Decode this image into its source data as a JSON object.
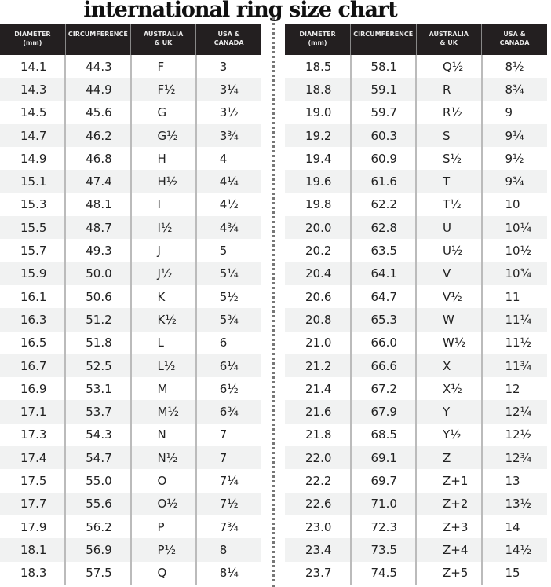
{
  "title": "international ring size chart",
  "columns": [
    "DIAMETER\n(mm)",
    "CIRCUMFERENCE",
    "AUSTRALIA\n& UK",
    "USA &\nCANADA"
  ],
  "left_rows": [
    [
      "14.1",
      "44.3",
      "F",
      "3"
    ],
    [
      "14.3",
      "44.9",
      "F½",
      "3¼"
    ],
    [
      "14.5",
      "45.6",
      "G",
      "3½"
    ],
    [
      "14.7",
      "46.2",
      "G½",
      "3¾"
    ],
    [
      "14.9",
      "46.8",
      "H",
      "4"
    ],
    [
      "15.1",
      "47.4",
      "H½",
      "4¼"
    ],
    [
      "15.3",
      "48.1",
      "I",
      "4½"
    ],
    [
      "15.5",
      "48.7",
      "I½",
      "4¾"
    ],
    [
      "15.7",
      "49.3",
      "J",
      "5"
    ],
    [
      "15.9",
      "50.0",
      "J½",
      "5¼"
    ],
    [
      "16.1",
      "50.6",
      "K",
      "5½"
    ],
    [
      "16.3",
      "51.2",
      "K½",
      "5¾"
    ],
    [
      "16.5",
      "51.8",
      "L",
      "6"
    ],
    [
      "16.7",
      "52.5",
      "L½",
      "6¼"
    ],
    [
      "16.9",
      "53.1",
      "M",
      "6½"
    ],
    [
      "17.1",
      "53.7",
      "M½",
      "6¾"
    ],
    [
      "17.3",
      "54.3",
      "N",
      "7"
    ],
    [
      "17.4",
      "54.7",
      "N½",
      "7"
    ],
    [
      "17.5",
      "55.0",
      "O",
      "7¼"
    ],
    [
      "17.7",
      "55.6",
      "O½",
      "7½"
    ],
    [
      "17.9",
      "56.2",
      "P",
      "7¾"
    ],
    [
      "18.1",
      "56.9",
      "P½",
      "8"
    ],
    [
      "18.3",
      "57.5",
      "Q",
      "8¼"
    ]
  ],
  "right_rows": [
    [
      "18.5",
      "58.1",
      "Q½",
      "8½"
    ],
    [
      "18.8",
      "59.1",
      "R",
      "8¾"
    ],
    [
      "19.0",
      "59.7",
      "R½",
      "9"
    ],
    [
      "19.2",
      "60.3",
      "S",
      "9¼"
    ],
    [
      "19.4",
      "60.9",
      "S½",
      "9½"
    ],
    [
      "19.6",
      "61.6",
      "T",
      "9¾"
    ],
    [
      "19.8",
      "62.2",
      "T½",
      "10"
    ],
    [
      "20.0",
      "62.8",
      "U",
      "10¼"
    ],
    [
      "20.2",
      "63.5",
      "U½",
      "10½"
    ],
    [
      "20.4",
      "64.1",
      "V",
      "10¾"
    ],
    [
      "20.6",
      "64.7",
      "V½",
      "11"
    ],
    [
      "20.8",
      "65.3",
      "W",
      "11¼"
    ],
    [
      "21.0",
      "66.0",
      "W½",
      "11½"
    ],
    [
      "21.2",
      "66.6",
      "X",
      "11¾"
    ],
    [
      "21.4",
      "67.2",
      "X½",
      "12"
    ],
    [
      "21.6",
      "67.9",
      "Y",
      "12¼"
    ],
    [
      "21.8",
      "68.5",
      "Y½",
      "12½"
    ],
    [
      "22.0",
      "69.1",
      "Z",
      "12¾"
    ],
    [
      "22.2",
      "69.7",
      "Z+1",
      "13"
    ],
    [
      "22.6",
      "71.0",
      "Z+2",
      "13½"
    ],
    [
      "23.0",
      "72.3",
      "Z+3",
      "14"
    ],
    [
      "23.4",
      "73.5",
      "Z+4",
      "14½"
    ],
    [
      "23.7",
      "74.5",
      "Z+5",
      "15"
    ]
  ]
}
